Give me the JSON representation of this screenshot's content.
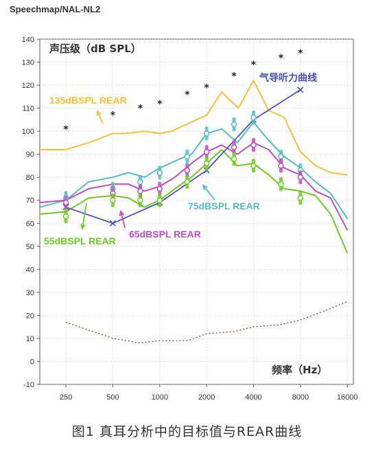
{
  "header": {
    "title": "Speechmap/NAL-NL2"
  },
  "figure_caption": "图1 真耳分析中的目标值与REAR曲线",
  "chart_data": {
    "type": "line",
    "ylabel": "声压级（dB SPL）",
    "xlabel": "频率（Hz）",
    "ylim": [
      -10,
      140
    ],
    "yticks": [
      -10,
      0,
      10,
      20,
      30,
      40,
      50,
      60,
      70,
      80,
      90,
      100,
      110,
      120,
      130,
      140
    ],
    "x_scale": "log",
    "xlim": [
      170,
      17500
    ],
    "xticks": [
      250,
      500,
      1000,
      2000,
      4000,
      8000,
      16000
    ],
    "xtick_labels": [
      "250",
      "500",
      "1000",
      "2000",
      "4000",
      "8000",
      "16000"
    ],
    "grid": "dotted",
    "colors": {
      "yellow": "#f7c034",
      "blue": "#4a4fc4",
      "cyan": "#52bfbf",
      "magenta": "#c04cc4",
      "green": "#6acc1e",
      "dark": "#222222",
      "brown": "#7a5a3a"
    },
    "series": [
      {
        "name": "135dBSPL REAR",
        "color": "#f7c034",
        "x": [
          170,
          250,
          350,
          500,
          600,
          800,
          1000,
          1200,
          1600,
          2000,
          2500,
          3200,
          4000,
          5000,
          6300,
          8000,
          10000,
          12500,
          16000
        ],
        "y": [
          92,
          92,
          95,
          99,
          99,
          100,
          99,
          100,
          104,
          107,
          117,
          110,
          122,
          109,
          106,
          91,
          85,
          82,
          81
        ]
      },
      {
        "name": "75dBSPL REAR",
        "color": "#52bfbf",
        "x": [
          170,
          250,
          350,
          500,
          630,
          800,
          1000,
          1250,
          1600,
          2000,
          2500,
          3150,
          4000,
          5000,
          6300,
          8000,
          10000,
          12500,
          16000
        ],
        "y": [
          67,
          70,
          78,
          80,
          82,
          80,
          84,
          87,
          90,
          99,
          101,
          95,
          104,
          96,
          89,
          84,
          78,
          73,
          62
        ]
      },
      {
        "name": "65dBSPL REAR",
        "color": "#c04cc4",
        "x": [
          170,
          250,
          350,
          500,
          630,
          800,
          1000,
          1250,
          1600,
          2000,
          2500,
          3150,
          4000,
          5000,
          6300,
          8000,
          10000,
          12500,
          16000
        ],
        "y": [
          69,
          70,
          75,
          77,
          77,
          74,
          76,
          80,
          86,
          91,
          94,
          90,
          95,
          92,
          84,
          81,
          74,
          71,
          57
        ]
      },
      {
        "name": "55dBSPL REAR",
        "color": "#6acc1e",
        "x": [
          170,
          250,
          350,
          500,
          630,
          800,
          1000,
          1250,
          1600,
          2000,
          2500,
          3150,
          4000,
          5000,
          6300,
          8000,
          10000,
          12500,
          16000
        ],
        "y": [
          64,
          65,
          71,
          72,
          71,
          67,
          70,
          75,
          80,
          86,
          92,
          85,
          86,
          81,
          75,
          74,
          72,
          64,
          47
        ]
      },
      {
        "name": "气导听力曲线",
        "color": "#4a4fc4",
        "x": [
          250,
          500,
          1000,
          2000,
          4000,
          8000
        ],
        "y": [
          67,
          60,
          69,
          83,
          105,
          118
        ]
      }
    ],
    "upper_limit_points": {
      "marker": "*",
      "x": [
        250,
        500,
        750,
        1000,
        1500,
        2000,
        3000,
        4000,
        6000,
        8000
      ],
      "y": [
        101,
        107,
        110,
        112,
        116,
        119,
        124,
        129,
        132,
        134
      ]
    },
    "threshold_curve": {
      "style": "dotted",
      "x": [
        250,
        500,
        750,
        1000,
        1500,
        2000,
        3000,
        4000,
        6000,
        8000,
        12500,
        16000
      ],
      "y": [
        17,
        10,
        8,
        9,
        9,
        12,
        13,
        15,
        16,
        18,
        23,
        26
      ]
    },
    "target_markers": [
      {
        "color": "#52bfbf",
        "x": [
          250,
          500,
          750,
          1000,
          1500,
          2000,
          3000,
          4000,
          6000,
          8000
        ],
        "y": [
          71,
          75,
          78,
          82,
          89,
          99,
          103,
          106,
          89,
          83
        ]
      },
      {
        "color": "#c04cc4",
        "x": [
          250,
          500,
          750,
          1000,
          1500,
          2000,
          3000,
          4000,
          6000,
          8000
        ],
        "y": [
          69,
          73,
          74,
          75,
          83,
          91,
          93,
          94,
          85,
          80
        ]
      },
      {
        "color": "#6acc1e",
        "x": [
          250,
          500,
          750,
          1000,
          1500,
          2000,
          3000,
          4000,
          6000,
          8000
        ],
        "y": [
          63,
          70,
          70,
          70,
          78,
          86,
          88,
          85,
          77,
          71
        ]
      }
    ],
    "annotations": [
      {
        "text": "135dBSPL REAR",
        "color": "#f7c034"
      },
      {
        "text": "气导听力曲线",
        "color": "#4a4fc4"
      },
      {
        "text": "75dBSPL REAR",
        "color": "#52bfbf"
      },
      {
        "text": "65dBSPL REAR",
        "color": "#c04cc4"
      },
      {
        "text": "55dBSPL REAR",
        "color": "#6acc1e"
      }
    ]
  }
}
